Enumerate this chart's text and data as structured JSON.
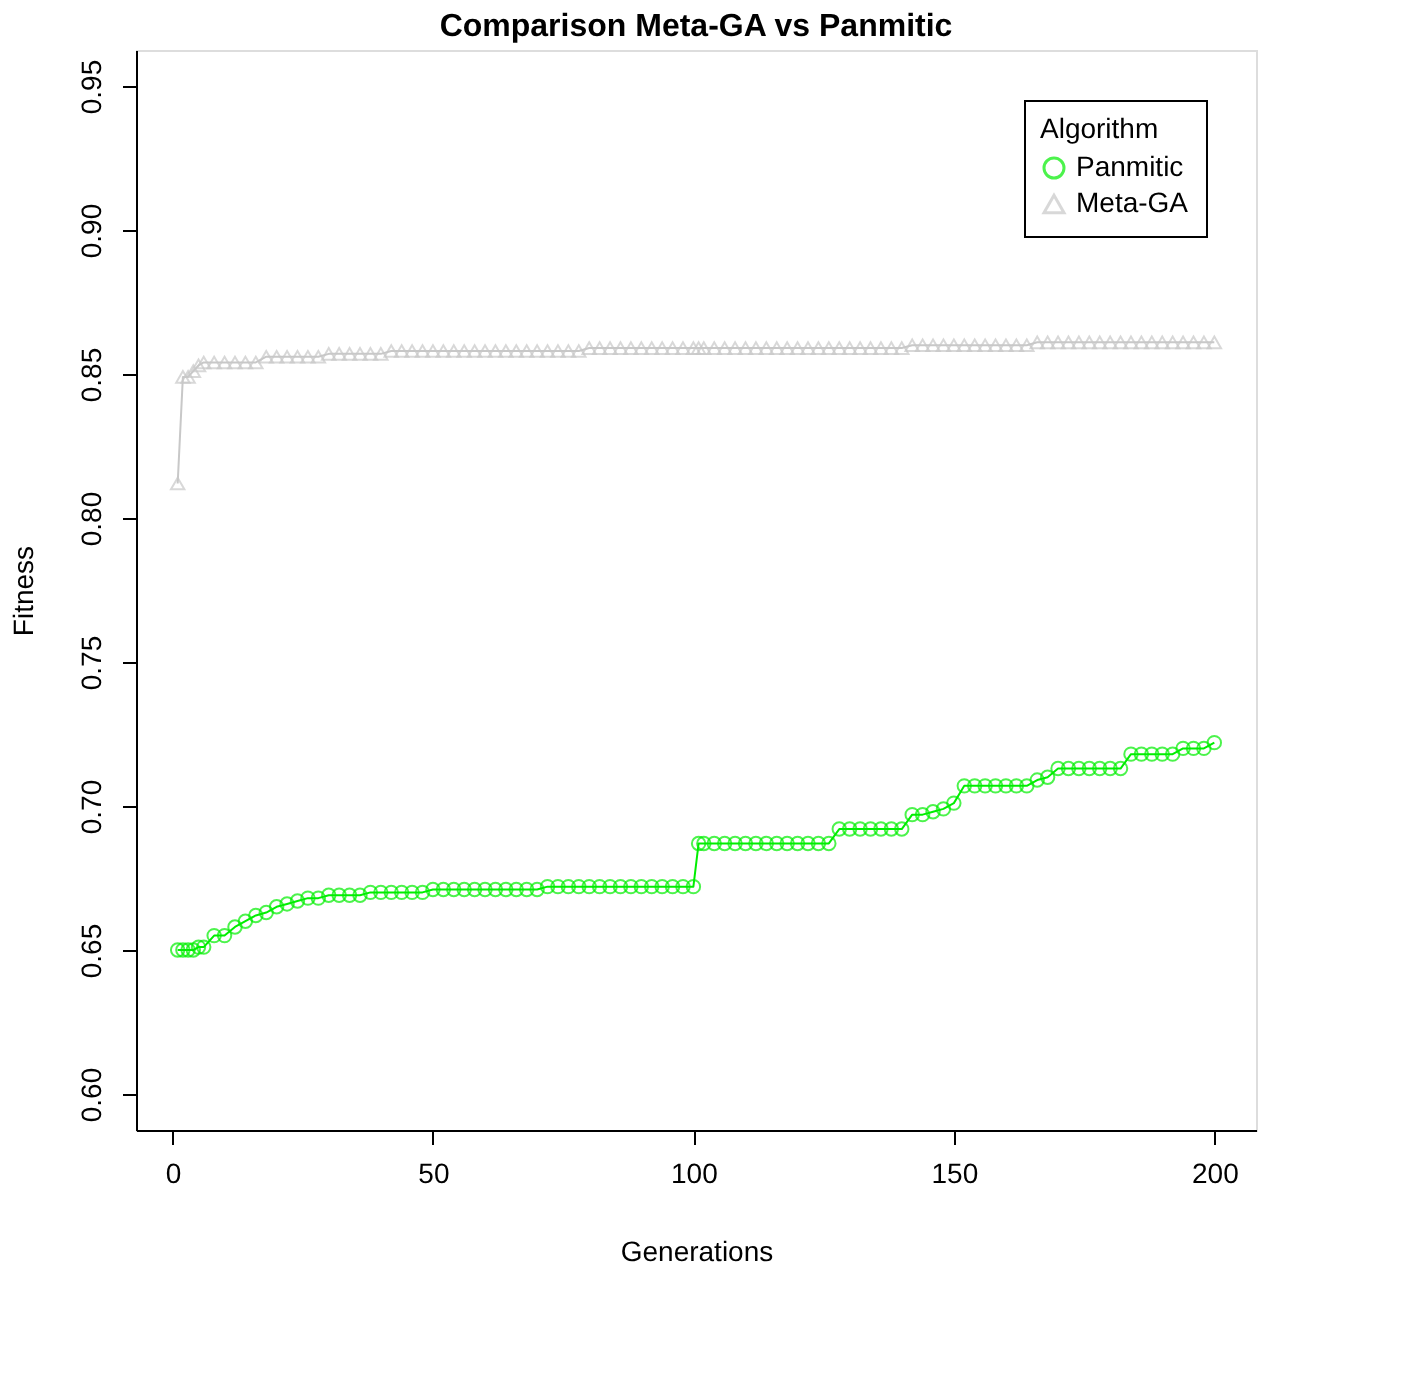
{
  "chart_data": {
    "type": "line",
    "title": "Comparison Meta-GA vs Panmitic",
    "xlabel": "Generations",
    "ylabel": "Fitness",
    "legend_title": "Algorithm",
    "x": [
      1,
      2,
      3,
      4,
      5,
      6,
      8,
      10,
      12,
      14,
      16,
      18,
      20,
      22,
      24,
      26,
      28,
      30,
      32,
      34,
      36,
      38,
      40,
      42,
      44,
      46,
      48,
      50,
      52,
      54,
      56,
      58,
      60,
      62,
      64,
      66,
      68,
      70,
      72,
      74,
      76,
      78,
      80,
      82,
      84,
      86,
      88,
      90,
      92,
      94,
      96,
      98,
      100,
      101,
      102,
      104,
      106,
      108,
      110,
      112,
      114,
      116,
      118,
      120,
      122,
      124,
      126,
      128,
      130,
      132,
      134,
      136,
      138,
      140,
      142,
      144,
      146,
      148,
      150,
      152,
      154,
      156,
      158,
      160,
      162,
      164,
      166,
      168,
      170,
      172,
      174,
      176,
      178,
      180,
      182,
      184,
      186,
      188,
      190,
      192,
      194,
      196,
      198,
      200
    ],
    "series": [
      {
        "name": "Panmitic",
        "color": "#00ee00",
        "marker": "circle",
        "values": [
          0.65,
          0.65,
          0.65,
          0.65,
          0.651,
          0.651,
          0.655,
          0.655,
          0.658,
          0.66,
          0.662,
          0.663,
          0.665,
          0.666,
          0.667,
          0.668,
          0.668,
          0.669,
          0.669,
          0.669,
          0.669,
          0.67,
          0.67,
          0.67,
          0.67,
          0.67,
          0.67,
          0.671,
          0.671,
          0.671,
          0.671,
          0.671,
          0.671,
          0.671,
          0.671,
          0.671,
          0.671,
          0.671,
          0.672,
          0.672,
          0.672,
          0.672,
          0.672,
          0.672,
          0.672,
          0.672,
          0.672,
          0.672,
          0.672,
          0.672,
          0.672,
          0.672,
          0.672,
          0.687,
          0.687,
          0.687,
          0.687,
          0.687,
          0.687,
          0.687,
          0.687,
          0.687,
          0.687,
          0.687,
          0.687,
          0.687,
          0.687,
          0.692,
          0.692,
          0.692,
          0.692,
          0.692,
          0.692,
          0.692,
          0.697,
          0.697,
          0.698,
          0.699,
          0.701,
          0.707,
          0.707,
          0.707,
          0.707,
          0.707,
          0.707,
          0.707,
          0.709,
          0.71,
          0.713,
          0.713,
          0.713,
          0.713,
          0.713,
          0.713,
          0.713,
          0.718,
          0.718,
          0.718,
          0.718,
          0.718,
          0.72,
          0.72,
          0.72,
          0.722
        ]
      },
      {
        "name": "Meta-GA",
        "color": "#c8c8c8",
        "marker": "triangle",
        "values": [
          0.812,
          0.849,
          0.849,
          0.851,
          0.853,
          0.854,
          0.854,
          0.854,
          0.854,
          0.854,
          0.854,
          0.856,
          0.856,
          0.856,
          0.856,
          0.856,
          0.856,
          0.857,
          0.857,
          0.857,
          0.857,
          0.857,
          0.857,
          0.858,
          0.858,
          0.858,
          0.858,
          0.858,
          0.858,
          0.858,
          0.858,
          0.858,
          0.858,
          0.858,
          0.858,
          0.858,
          0.858,
          0.858,
          0.858,
          0.858,
          0.858,
          0.858,
          0.859,
          0.859,
          0.859,
          0.859,
          0.859,
          0.859,
          0.859,
          0.859,
          0.859,
          0.859,
          0.859,
          0.859,
          0.859,
          0.859,
          0.859,
          0.859,
          0.859,
          0.859,
          0.859,
          0.859,
          0.859,
          0.859,
          0.859,
          0.859,
          0.859,
          0.859,
          0.859,
          0.859,
          0.859,
          0.859,
          0.859,
          0.859,
          0.86,
          0.86,
          0.86,
          0.86,
          0.86,
          0.86,
          0.86,
          0.86,
          0.86,
          0.86,
          0.86,
          0.86,
          0.861,
          0.861,
          0.861,
          0.861,
          0.861,
          0.861,
          0.861,
          0.861,
          0.861,
          0.861,
          0.861,
          0.861,
          0.861,
          0.861,
          0.861,
          0.861,
          0.861,
          0.861
        ]
      }
    ],
    "xlim": [
      -7,
      208
    ],
    "ylim": [
      0.5875,
      0.9625
    ],
    "xticks": [
      0,
      50,
      100,
      150,
      200
    ],
    "yticks": [
      {
        "value": 0.6,
        "label": "0.60"
      },
      {
        "value": 0.65,
        "label": "0.65"
      },
      {
        "value": 0.7,
        "label": "0.70"
      },
      {
        "value": 0.75,
        "label": "0.75"
      },
      {
        "value": 0.8,
        "label": "0.80"
      },
      {
        "value": 0.85,
        "label": "0.85"
      },
      {
        "value": 0.9,
        "label": "0.90"
      },
      {
        "value": 0.95,
        "label": "0.95"
      }
    ],
    "legend": "top right",
    "grid": false,
    "line_style": "solid"
  }
}
